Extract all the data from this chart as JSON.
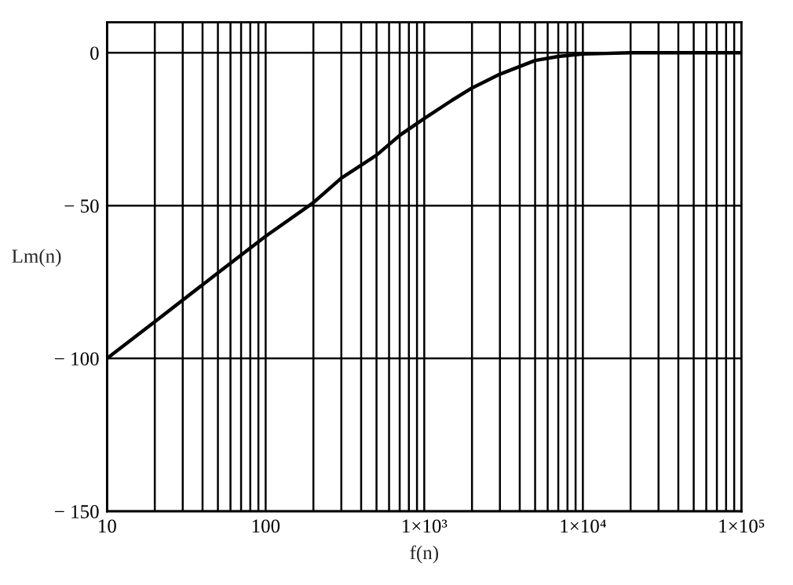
{
  "chart_data": {
    "type": "line",
    "xlabel": "f(n)",
    "ylabel": "Lm(n)",
    "log": "x",
    "x": [
      10,
      20,
      50,
      100,
      200,
      300,
      500,
      700,
      1000,
      1500,
      2000,
      3000,
      5000,
      7000,
      10000,
      20000,
      100000
    ],
    "series": [
      {
        "color": "#000000",
        "values": [
          -100,
          -88,
          -72,
          -60,
          -49,
          -41,
          -33.5,
          -27,
          -21.5,
          -15.5,
          -11.5,
          -7,
          -2.5,
          -1.2,
          -0.4,
          0,
          0
        ]
      }
    ],
    "xlim": [
      10,
      100000
    ],
    "ylim": [
      -150,
      10
    ],
    "xticks": [
      10,
      100,
      {
        "value": 1000,
        "label": "1×10³"
      },
      {
        "value": 10000,
        "label": "1×10⁴"
      },
      {
        "value": 100000,
        "label": "1×10⁵"
      }
    ],
    "yticks": [
      {
        "value": -150,
        "label": "− 150"
      },
      {
        "value": -100,
        "label": "− 100"
      },
      {
        "value": -50,
        "label": "− 50"
      },
      0
    ],
    "grid": true,
    "line_style": "solid",
    "marker": "none"
  }
}
